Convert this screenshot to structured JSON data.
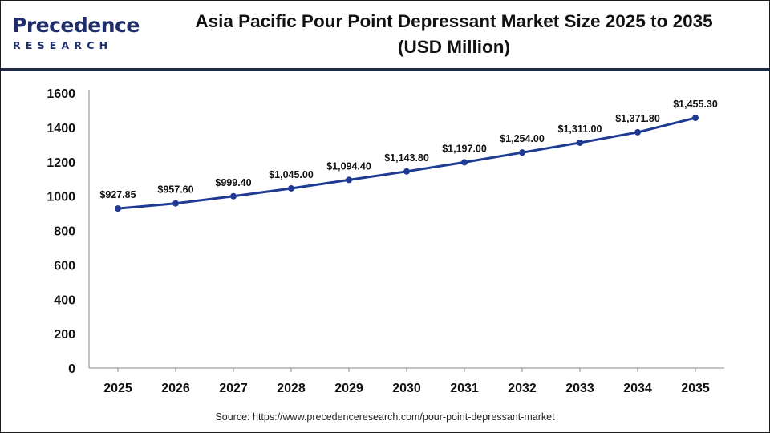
{
  "header": {
    "logo_word": "Precedence",
    "logo_sub": "RESEARCH",
    "title_line1": "Asia Pacific Pour Point Depressant Market Size 2025 to 2035",
    "title_line2": "(USD Million)"
  },
  "colors": {
    "line": "#1f3a93",
    "marker": "#1f3a93",
    "header_rule": "#1f2a44",
    "logo": "#1f2d6b"
  },
  "chart_data": {
    "type": "line",
    "title": "Asia Pacific Pour Point Depressant Market Size 2025 to 2035 (USD Million)",
    "xlabel": "",
    "ylabel": "",
    "ylim": [
      0,
      1600
    ],
    "yticks": [
      "0",
      "200",
      "400",
      "600",
      "800",
      "1000",
      "1200",
      "1400",
      "1600"
    ],
    "grid": false,
    "categories": [
      "2025",
      "2026",
      "2027",
      "2028",
      "2029",
      "2030",
      "2031",
      "2032",
      "2033",
      "2034",
      "2035"
    ],
    "series": [
      {
        "values": [
          927.85,
          957.6,
          999.4,
          1045.0,
          1094.4,
          1143.8,
          1197.0,
          1254.0,
          1311.0,
          1371.8,
          1455.3
        ],
        "labels": [
          "$927.85",
          "$957.60",
          "$999.40",
          "$1,045.00",
          "$1,094.40",
          "$1,143.80",
          "$1,197.00",
          "$1,254.00",
          "$1,311.00",
          "$1,371.80",
          "$1,455.30"
        ]
      }
    ]
  },
  "source": {
    "prefix": "Source: ",
    "url": "https://www.precedenceresearch.com/pour-point-depressant-market"
  }
}
